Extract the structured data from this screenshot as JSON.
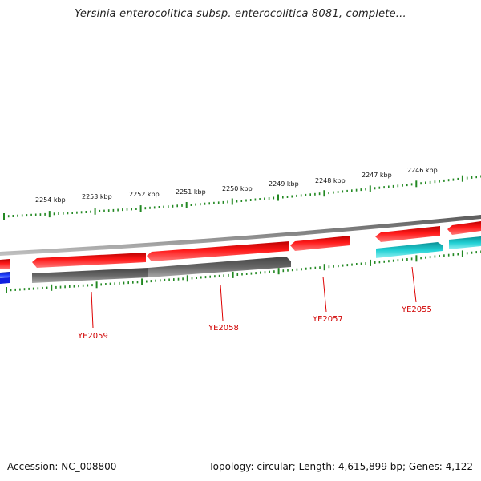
{
  "title": "Yersinia enterocolitica subsp. enterocolitica 8081, complete...",
  "footer": {
    "accession": "Accession: NC_008800",
    "meta": "Topology: circular; Length: 4,615,899 bp; Genes: 4,122"
  },
  "ticks": {
    "labels": [
      "2254 kbp",
      "2253 kbp",
      "2252 kbp",
      "2251 kbp",
      "2250 kbp",
      "2249 kbp",
      "2248 kbp",
      "2247 kbp",
      "2246 kbp"
    ]
  },
  "genes": {
    "labels": [
      "YE2059",
      "YE2058",
      "YE2057",
      "YE2055"
    ]
  },
  "colors": {
    "backbone": "#7a7a7a",
    "forward_gene": "#ee1111",
    "reverse_gray_gene": "#666666",
    "reverse_cyan_gene": "#1ec8cc",
    "blue_gene": "#1133dd",
    "tick": "#228822",
    "gene_label": "#dd0000"
  }
}
